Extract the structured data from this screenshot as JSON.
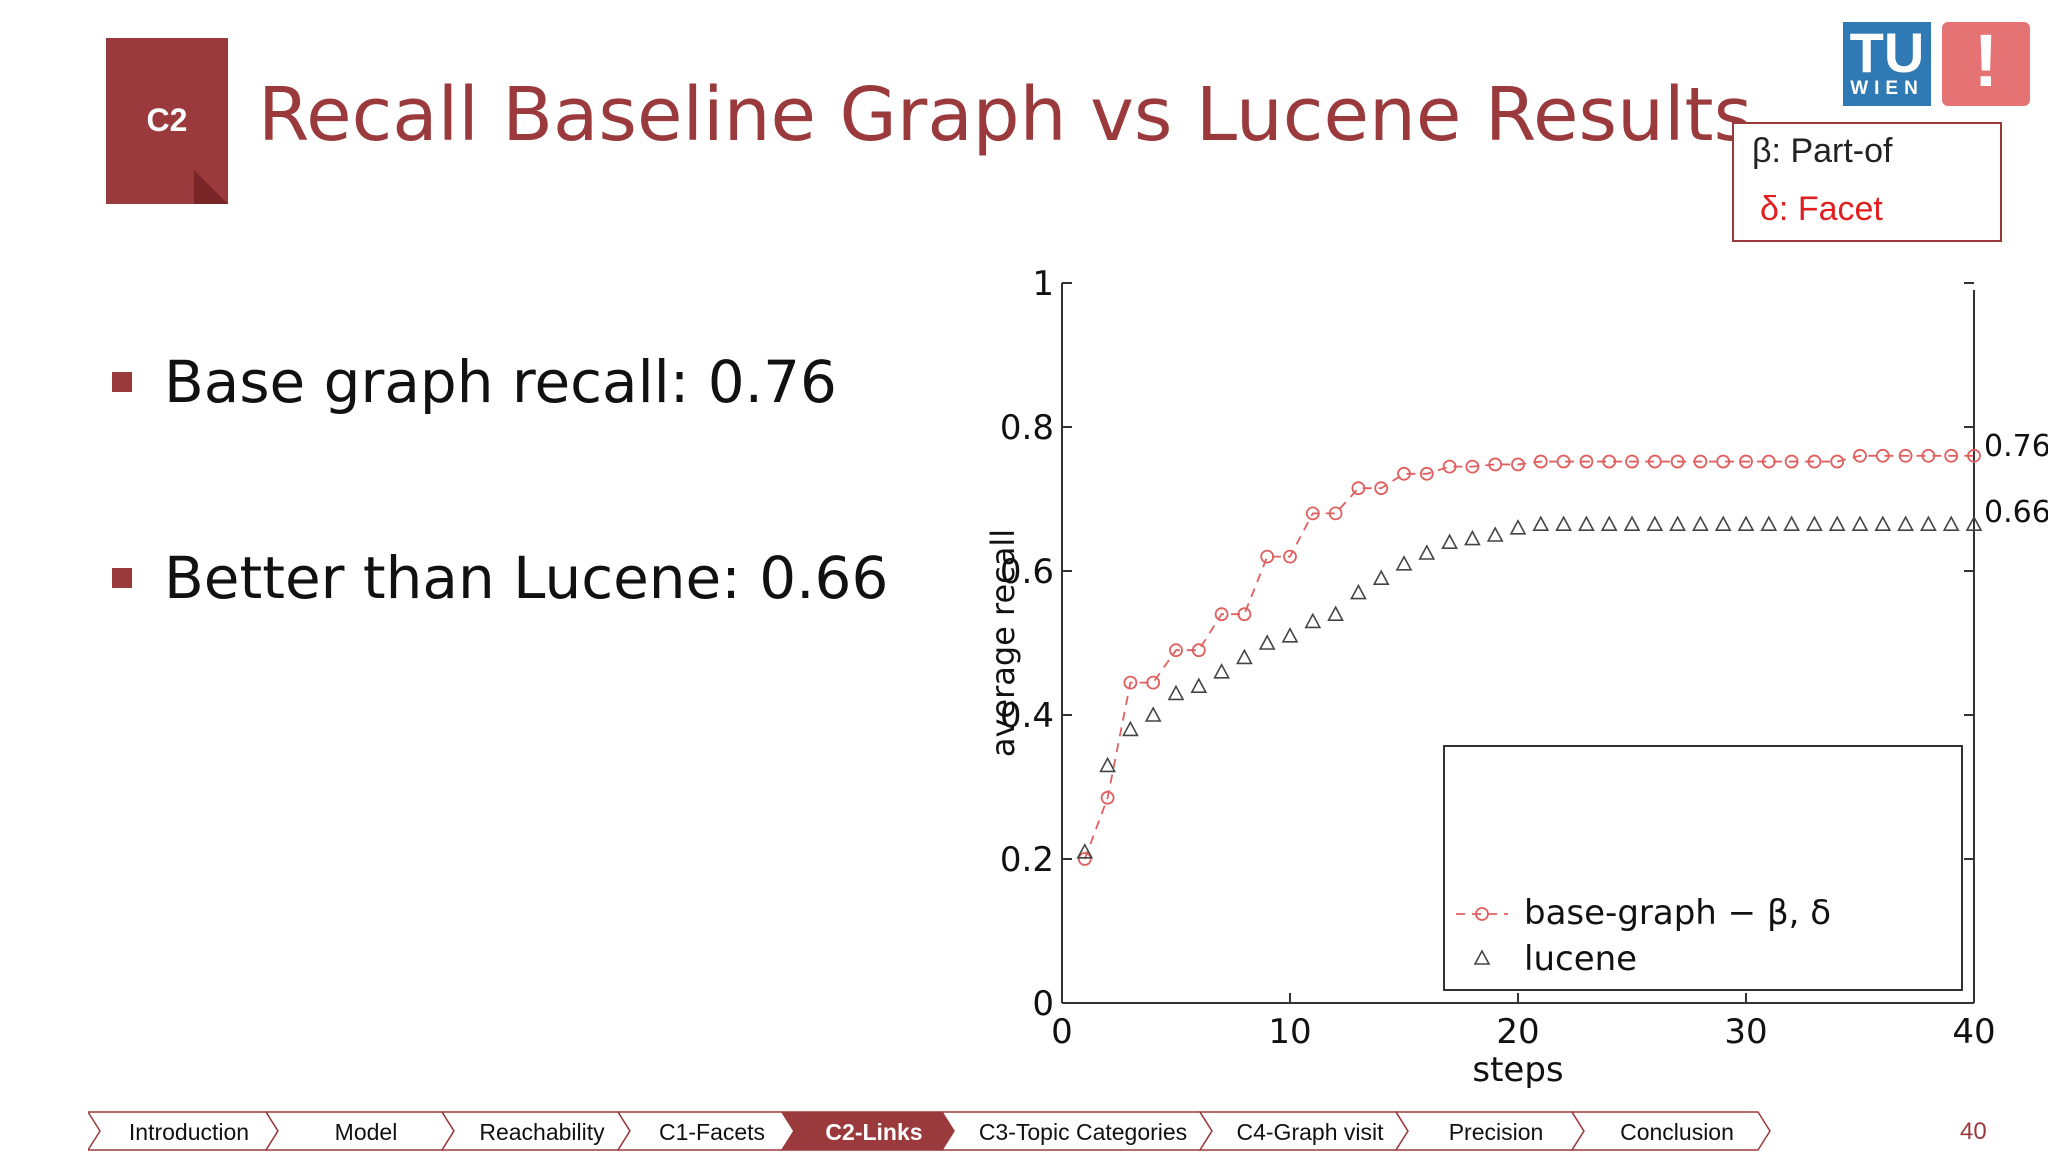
{
  "slide": {
    "badge": "C2",
    "title": "Recall Baseline Graph vs Lucene Results",
    "page_number": "40",
    "accent_color": "#9b3a3c"
  },
  "logos": {
    "tu": "TU",
    "wien": "WIEN",
    "exclamation": "!"
  },
  "symbols": {
    "beta": "β: Part-of",
    "delta": "δ: Facet"
  },
  "bullets": [
    "Base graph recall: 0.76",
    "Better than Lucene: 0.66"
  ],
  "chart_data": {
    "type": "line",
    "xlabel": "steps",
    "ylabel": "average recall",
    "xlim": [
      0,
      40
    ],
    "ylim": [
      0,
      1
    ],
    "x_ticks": [
      "0",
      "10",
      "20",
      "30",
      "40"
    ],
    "y_ticks": [
      "0",
      "0.2",
      "0.4",
      "0.6",
      "0.8",
      "1"
    ],
    "legend_position": "bottom-right",
    "end_labels": [
      "0.76",
      "0.66"
    ],
    "series": [
      {
        "name": "base-graph − β, δ",
        "color": "#e06060",
        "marker": "circle",
        "line": "dashed",
        "x": [
          1,
          2,
          3,
          4,
          5,
          6,
          7,
          8,
          9,
          10,
          11,
          12,
          13,
          14,
          15,
          16,
          17,
          18,
          19,
          20,
          21,
          22,
          23,
          24,
          25,
          26,
          27,
          28,
          29,
          30,
          31,
          32,
          33,
          34,
          35,
          36,
          37,
          38,
          39,
          40
        ],
        "y": [
          0.2,
          0.285,
          0.445,
          0.445,
          0.49,
          0.49,
          0.54,
          0.54,
          0.62,
          0.62,
          0.68,
          0.68,
          0.715,
          0.715,
          0.735,
          0.735,
          0.745,
          0.745,
          0.748,
          0.748,
          0.752,
          0.752,
          0.752,
          0.752,
          0.752,
          0.752,
          0.752,
          0.752,
          0.752,
          0.752,
          0.752,
          0.752,
          0.752,
          0.752,
          0.76,
          0.76,
          0.76,
          0.76,
          0.76,
          0.76
        ]
      },
      {
        "name": "lucene",
        "color": "#444444",
        "marker": "triangle",
        "line": "none",
        "x": [
          1,
          2,
          3,
          4,
          5,
          6,
          7,
          8,
          9,
          10,
          11,
          12,
          13,
          14,
          15,
          16,
          17,
          18,
          19,
          20,
          21,
          22,
          23,
          24,
          25,
          26,
          27,
          28,
          29,
          30,
          31,
          32,
          33,
          34,
          35,
          36,
          37,
          38,
          39,
          40
        ],
        "y": [
          0.21,
          0.33,
          0.38,
          0.4,
          0.43,
          0.44,
          0.46,
          0.48,
          0.5,
          0.51,
          0.53,
          0.54,
          0.57,
          0.59,
          0.61,
          0.625,
          0.64,
          0.645,
          0.65,
          0.66,
          0.665,
          0.665,
          0.665,
          0.665,
          0.665,
          0.665,
          0.665,
          0.665,
          0.665,
          0.665,
          0.665,
          0.665,
          0.665,
          0.665,
          0.665,
          0.665,
          0.665,
          0.665,
          0.665,
          0.665
        ]
      }
    ]
  },
  "nav": {
    "items": [
      {
        "label": "Introduction",
        "active": false
      },
      {
        "label": "Model",
        "active": false
      },
      {
        "label": "Reachability",
        "active": false
      },
      {
        "label": "C1-Facets",
        "active": false
      },
      {
        "label": "C2-Links",
        "active": true
      },
      {
        "label": "C3-Topic Categories",
        "active": false
      },
      {
        "label": "C4-Graph visit",
        "active": false
      },
      {
        "label": "Precision",
        "active": false
      },
      {
        "label": "Conclusion",
        "active": false
      }
    ]
  }
}
